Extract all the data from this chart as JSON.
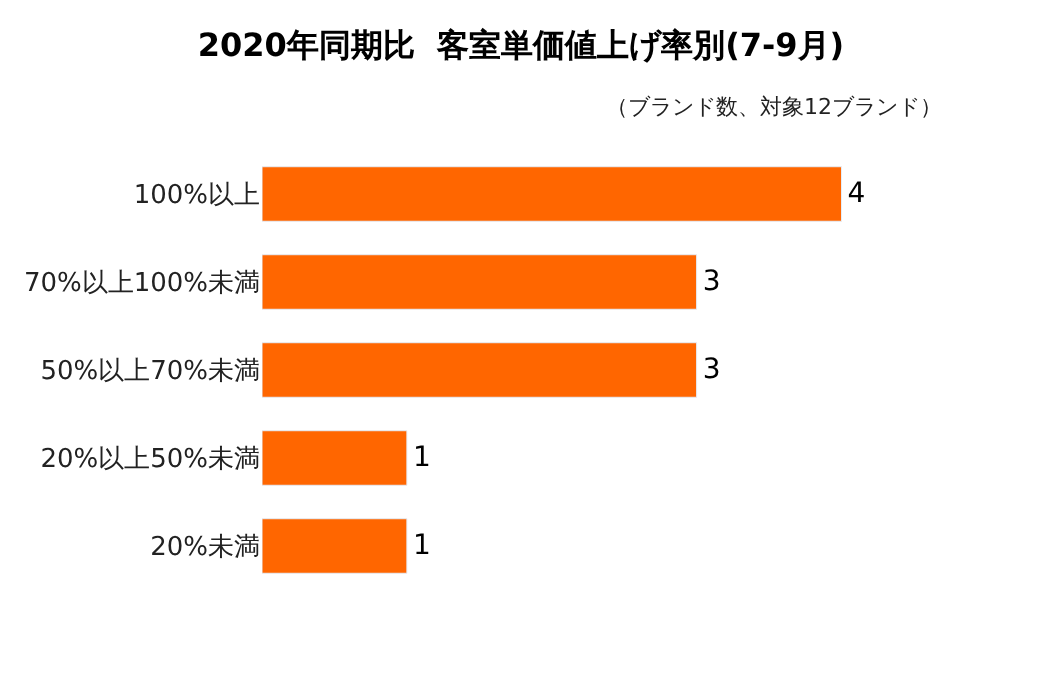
{
  "chart_data": {
    "type": "bar",
    "orientation": "horizontal",
    "title": "2020年同期比  客室単価値上げ率別(7-9月)",
    "subtitle": "（ブランド数、対象12ブランド）",
    "categories": [
      "100%以上",
      "70%以上100%未満",
      "50%以上70%未満",
      "20%以上50%未満",
      "20%未満"
    ],
    "values": [
      4,
      3,
      3,
      1,
      1
    ],
    "color": "#ff6600",
    "data_labels": true
  }
}
